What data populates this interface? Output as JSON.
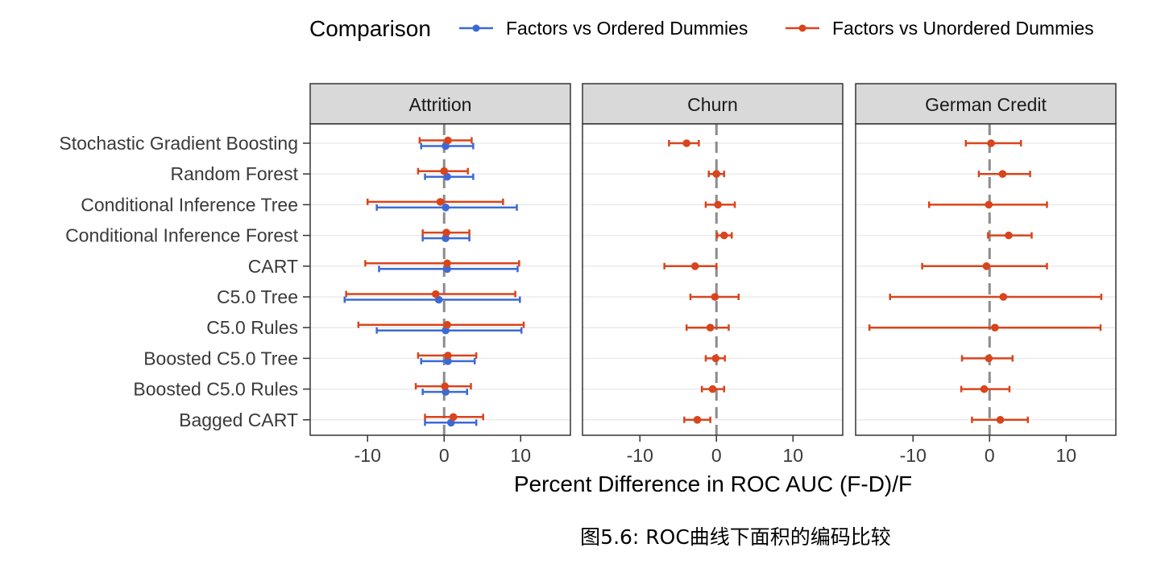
{
  "caption": "图5.6: ROC曲线下面积的编码比较",
  "chart_data": {
    "type": "errorbar",
    "xlabel": "Percent Difference in ROC AUC (F-D)/F",
    "ylabel": "",
    "xlim": [
      -17.5,
      16.5
    ],
    "xticks": [
      -10,
      0,
      10
    ],
    "xtick_labels": [
      "-10",
      "0",
      "10"
    ],
    "reference_line": 0,
    "grid": true,
    "legend": {
      "title": "Comparison",
      "position": "top",
      "entries": [
        {
          "name": "Factors vs Ordered Dummies",
          "color": "#3b6ad6"
        },
        {
          "name": "Factors vs Unordered Dummies",
          "color": "#d9441c"
        }
      ]
    },
    "categories": [
      "Stochastic Gradient Boosting",
      "Random Forest",
      "Conditional Inference Tree",
      "Conditional Inference Forest",
      "CART",
      "C5.0 Tree",
      "C5.0 Rules",
      "Boosted C5.0 Tree",
      "Boosted C5.0 Rules",
      "Bagged CART"
    ],
    "panels": [
      {
        "title": "Attrition",
        "series": [
          {
            "name": "Factors vs Ordered Dummies",
            "color": "#3b6ad6",
            "estimate": [
              0.2,
              0.4,
              0.2,
              0.2,
              0.4,
              -0.7,
              0.2,
              0.5,
              0.2,
              0.9
            ],
            "lower": [
              -3.0,
              -2.5,
              -8.8,
              -2.8,
              -8.5,
              -13.0,
              -8.8,
              -3.0,
              -2.8,
              -2.5
            ],
            "upper": [
              3.8,
              3.8,
              9.5,
              3.3,
              9.6,
              9.9,
              10.1,
              4.0,
              3.0,
              4.2
            ]
          },
          {
            "name": "Factors vs Unordered Dummies",
            "color": "#d9441c",
            "estimate": [
              0.5,
              0.0,
              -0.5,
              0.3,
              0.4,
              -1.1,
              0.4,
              0.5,
              0.1,
              1.2
            ],
            "lower": [
              -3.2,
              -3.4,
              -10.0,
              -2.8,
              -10.3,
              -12.8,
              -11.2,
              -3.4,
              -3.7,
              -2.5
            ],
            "upper": [
              3.6,
              3.1,
              7.7,
              3.3,
              9.8,
              9.3,
              10.4,
              4.2,
              3.5,
              5.1
            ]
          }
        ]
      },
      {
        "title": "Churn",
        "series": [
          {
            "name": "Factors vs Unordered Dummies",
            "color": "#d9441c",
            "estimate": [
              -3.9,
              0.0,
              0.2,
              1.0,
              -2.8,
              -0.2,
              -0.8,
              -0.1,
              -0.5,
              -2.5
            ],
            "lower": [
              -6.2,
              -1.0,
              -1.4,
              0.1,
              -6.8,
              -3.4,
              -3.9,
              -1.4,
              -1.9,
              -4.2
            ],
            "upper": [
              -2.3,
              1.0,
              2.4,
              2.0,
              0.0,
              2.9,
              1.6,
              1.1,
              1.0,
              -0.8
            ]
          }
        ]
      },
      {
        "title": "German Credit",
        "series": [
          {
            "name": "Factors vs Unordered Dummies",
            "color": "#d9441c",
            "estimate": [
              0.2,
              1.7,
              -0.1,
              2.5,
              -0.4,
              1.8,
              0.7,
              -0.1,
              -0.7,
              1.4
            ],
            "lower": [
              -3.1,
              -1.4,
              -7.9,
              -0.2,
              -8.8,
              -13.0,
              -15.7,
              -3.6,
              -3.7,
              -2.3
            ],
            "upper": [
              4.1,
              5.3,
              7.5,
              5.5,
              7.5,
              14.6,
              14.5,
              3.0,
              2.6,
              5.0
            ]
          }
        ]
      }
    ]
  }
}
